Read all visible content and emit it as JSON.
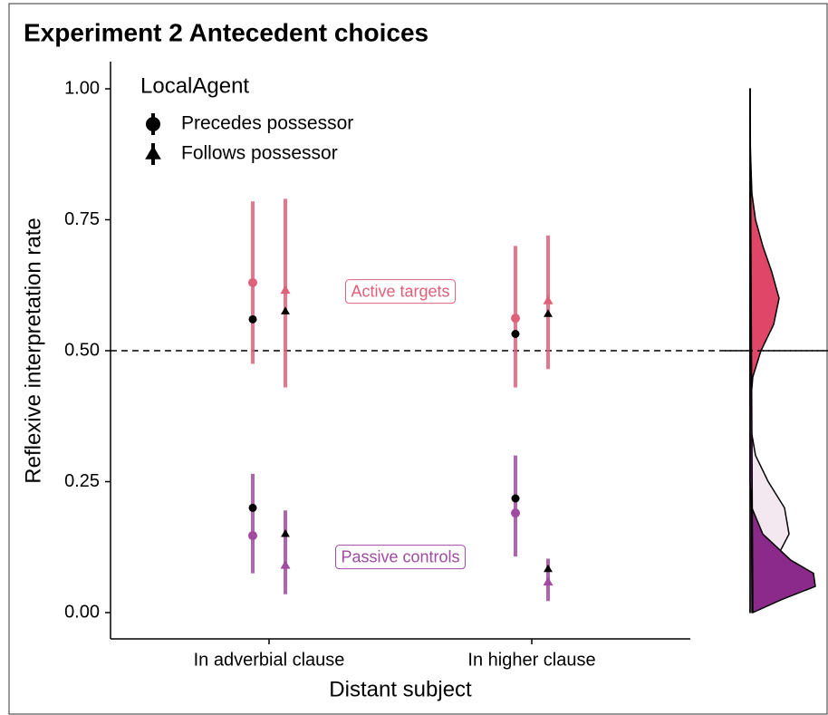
{
  "chart_data": {
    "type": "pointrange",
    "title": "Experiment 2 Antecedent choices",
    "x_label": "Distant subject",
    "y_label": "Reflexive interpretation rate",
    "categories": [
      "In adverbial clause",
      "In higher clause"
    ],
    "ylim": [
      0,
      1
    ],
    "yticks": [
      {
        "value": 0,
        "label": "0.00"
      },
      {
        "value": 0.25,
        "label": "0.25"
      },
      {
        "value": 0.5,
        "label": "0.50"
      },
      {
        "value": 0.75,
        "label": "0.75"
      },
      {
        "value": 1,
        "label": "1.00"
      }
    ],
    "hline": 0.5,
    "legend_title": "LocalAgent",
    "legend_position": "top-left",
    "model_color": "#000000",
    "groups": [
      {
        "label": "Active targets",
        "color": "#e0607a",
        "series": [
          {
            "name": "Precedes possessor",
            "shape": "circle",
            "values": [
              0.63,
              0.562
            ],
            "lower": [
              0.475,
              0.43
            ],
            "upper": [
              0.785,
              0.7
            ],
            "model_values": [
              0.56,
              0.532
            ]
          },
          {
            "name": "Follows possessor",
            "shape": "triangle",
            "values": [
              0.615,
              0.595
            ],
            "lower": [
              0.43,
              0.465
            ],
            "upper": [
              0.79,
              0.72
            ],
            "model_values": [
              0.575,
              0.57
            ]
          }
        ]
      },
      {
        "label": "Passive controls",
        "color": "#a04aa0",
        "series": [
          {
            "name": "Precedes possessor",
            "shape": "circle",
            "values": [
              0.147,
              0.19
            ],
            "lower": [
              0.075,
              0.107
            ],
            "upper": [
              0.265,
              0.3
            ],
            "model_values": [
              0.2,
              0.218
            ]
          },
          {
            "name": "Follows possessor",
            "shape": "triangle",
            "values": [
              0.09,
              0.058
            ],
            "lower": [
              0.035,
              0.022
            ],
            "upper": [
              0.195,
              0.103
            ],
            "model_values": [
              0.15,
              0.083
            ]
          }
        ]
      }
    ],
    "density": {
      "y": [
        0,
        0.025,
        0.05,
        0.075,
        0.1,
        0.15,
        0.2,
        0.25,
        0.3,
        0.35,
        0.4,
        0.45,
        0.5,
        0.55,
        0.6,
        0.65,
        0.7,
        0.75,
        0.8,
        0.9,
        1.0
      ],
      "series": [
        {
          "color": "#e04668",
          "values": [
            0,
            0,
            0,
            0,
            0,
            0,
            0,
            0,
            0,
            0,
            0.5,
            3,
            12,
            26,
            32,
            24,
            14,
            6,
            2,
            0,
            0
          ]
        },
        {
          "color": "#f3e8f0",
          "values": [
            2,
            5,
            10,
            18,
            28,
            43,
            38,
            20,
            6,
            1,
            0,
            0,
            0,
            0,
            0,
            0,
            0,
            0,
            0,
            0,
            0
          ]
        },
        {
          "color": "#8b2a8b",
          "values": [
            3,
            35,
            72,
            70,
            45,
            14,
            2,
            0,
            0,
            0,
            0,
            0,
            0,
            0,
            0,
            0,
            0,
            0,
            0,
            0,
            0
          ]
        }
      ]
    }
  }
}
